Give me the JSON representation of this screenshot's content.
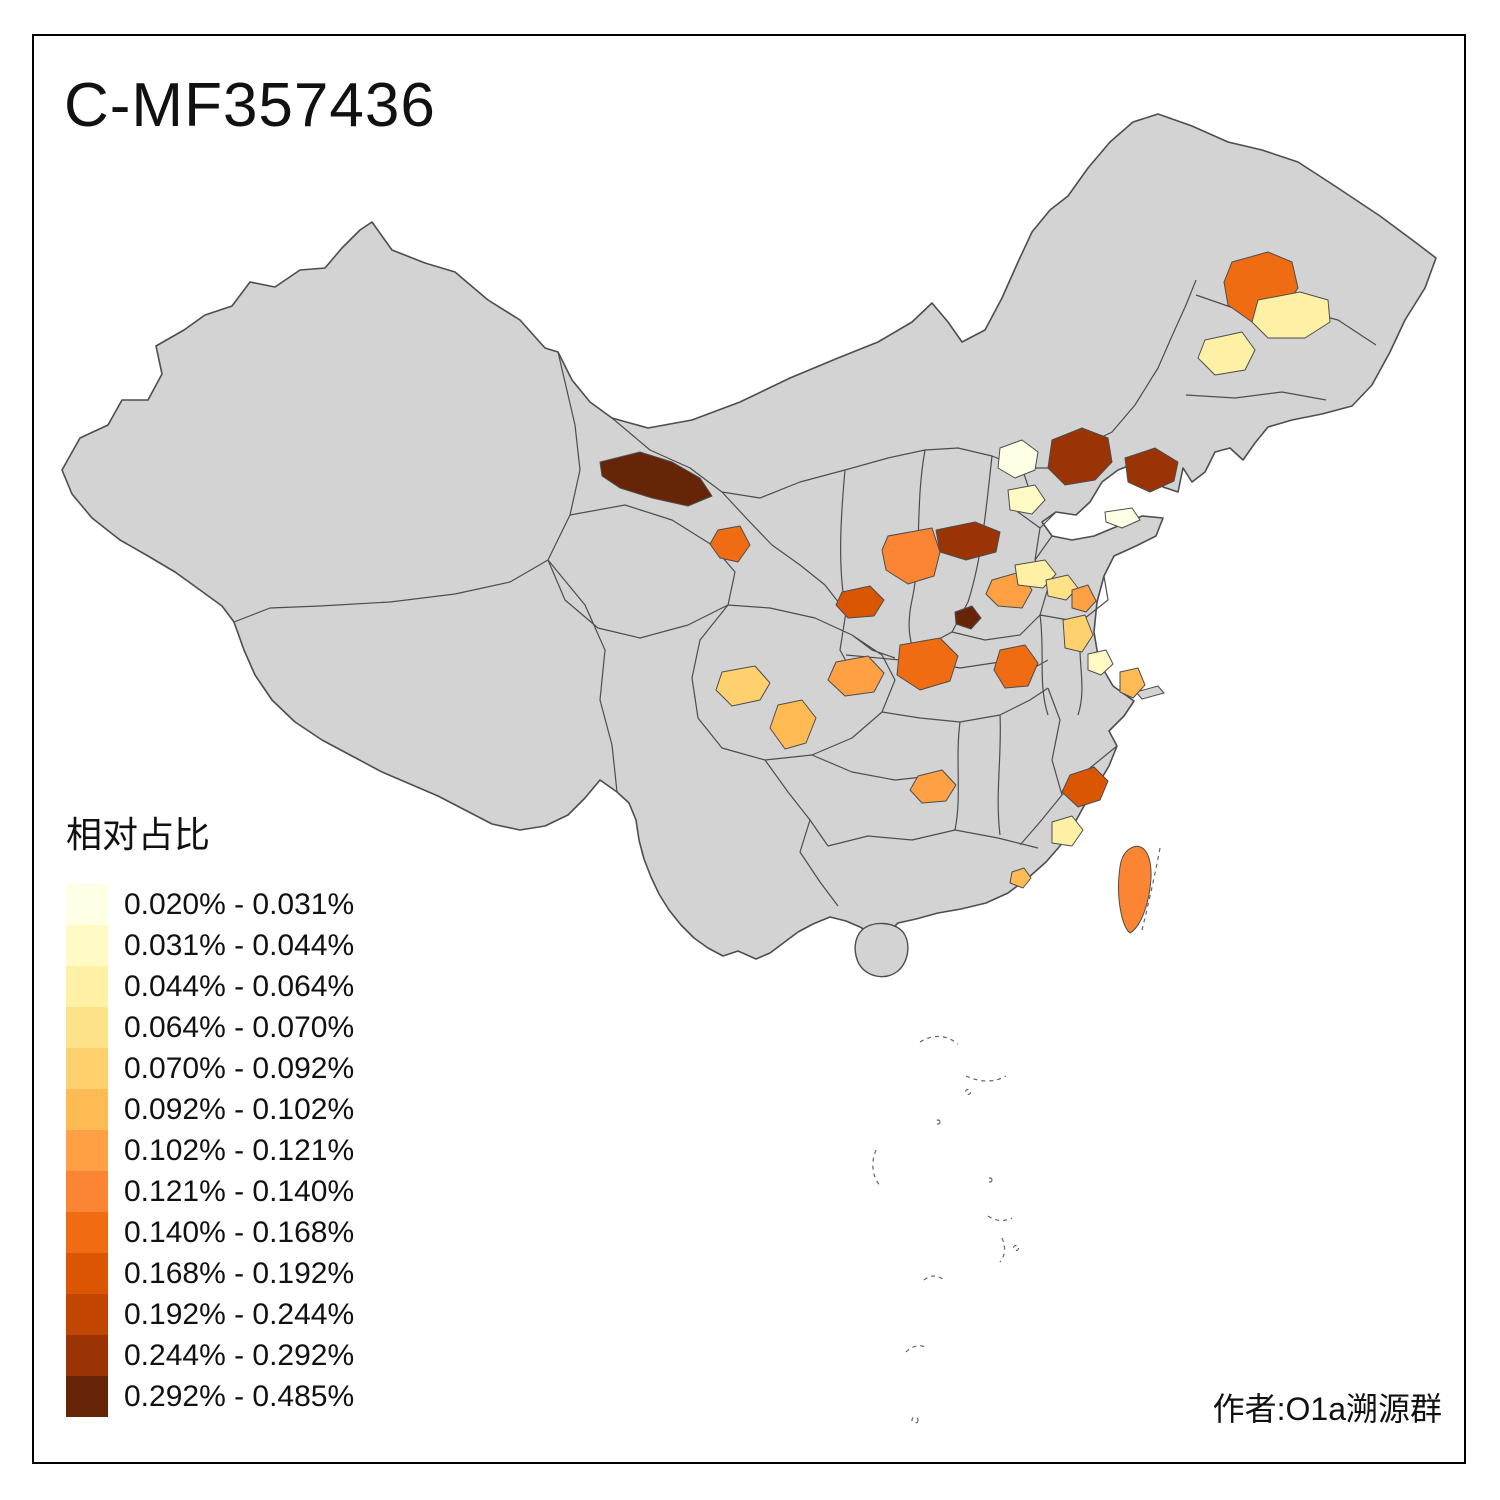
{
  "title": "C-MF357436",
  "credit": "作者:O1a溯源群",
  "legend": {
    "title": "相对占比",
    "bins": [
      {
        "label": "0.020% - 0.031%",
        "color": "#FFFFE5"
      },
      {
        "label": "0.031% - 0.044%",
        "color": "#FFF9C4"
      },
      {
        "label": "0.044% - 0.064%",
        "color": "#FEF0A5"
      },
      {
        "label": "0.064% - 0.070%",
        "color": "#FEE288"
      },
      {
        "label": "0.070% - 0.092%",
        "color": "#FED16E"
      },
      {
        "label": "0.092% - 0.102%",
        "color": "#FEBB54"
      },
      {
        "label": "0.102% - 0.121%",
        "color": "#FEA043"
      },
      {
        "label": "0.121% - 0.140%",
        "color": "#FB8532"
      },
      {
        "label": "0.140% - 0.168%",
        "color": "#EF6C12"
      },
      {
        "label": "0.168% - 0.192%",
        "color": "#DA5602"
      },
      {
        "label": "0.192% - 0.244%",
        "color": "#C04602"
      },
      {
        "label": "0.244% - 0.292%",
        "color": "#9A3404"
      },
      {
        "label": "0.292% - 0.485%",
        "color": "#662506"
      }
    ]
  },
  "map": {
    "base_fill": "#d3d3d3",
    "boundary_color": "#4d4d4d",
    "regions": [
      {
        "id": "r01",
        "bin": 9
      },
      {
        "id": "r02",
        "bin": 3
      },
      {
        "id": "r03",
        "bin": 3
      },
      {
        "id": "r04",
        "bin": 1
      },
      {
        "id": "r05",
        "bin": 12
      },
      {
        "id": "r06",
        "bin": 12
      },
      {
        "id": "r07",
        "bin": 2
      },
      {
        "id": "r08",
        "bin": 1
      },
      {
        "id": "r09",
        "bin": 13
      },
      {
        "id": "r10",
        "bin": 9
      },
      {
        "id": "r11",
        "bin": 8
      },
      {
        "id": "r12",
        "bin": 12
      },
      {
        "id": "r13",
        "bin": 10
      },
      {
        "id": "r14",
        "bin": 13
      },
      {
        "id": "r15",
        "bin": 7
      },
      {
        "id": "r16",
        "bin": 3
      },
      {
        "id": "r17",
        "bin": 4
      },
      {
        "id": "r18",
        "bin": 7
      },
      {
        "id": "r19",
        "bin": 5
      },
      {
        "id": "r20",
        "bin": 2
      },
      {
        "id": "r21",
        "bin": 6
      },
      {
        "id": "r22",
        "bin": 9
      },
      {
        "id": "r23",
        "bin": 9
      },
      {
        "id": "r24",
        "bin": 5
      },
      {
        "id": "r25",
        "bin": 7
      },
      {
        "id": "r26",
        "bin": 6
      },
      {
        "id": "r27",
        "bin": 7
      },
      {
        "id": "r28",
        "bin": 10
      },
      {
        "id": "r29",
        "bin": 3
      },
      {
        "id": "r30",
        "bin": 6
      },
      {
        "id": "r31",
        "bin": 8
      }
    ]
  }
}
